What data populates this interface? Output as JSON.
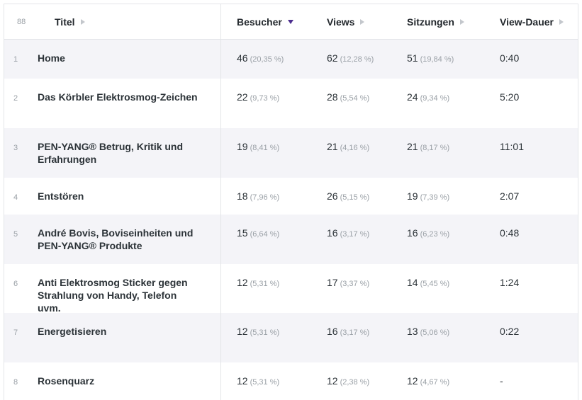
{
  "header": {
    "count": "88",
    "columns": [
      {
        "label": "Titel"
      },
      {
        "label": "Besucher"
      },
      {
        "label": "Views"
      },
      {
        "label": "Sitzungen"
      },
      {
        "label": "View-Dauer"
      }
    ]
  },
  "rows": [
    {
      "num": "1",
      "title": "Home",
      "visitors": "46",
      "visitors_pct": "(20,35 %)",
      "views": "62",
      "views_pct": "(12,28 %)",
      "sessions": "51",
      "sessions_pct": "(19,84 %)",
      "duration": "0:40"
    },
    {
      "num": "2",
      "title": "Das Körbler Elektrosmog-Zeichen",
      "visitors": "22",
      "visitors_pct": "(9,73 %)",
      "views": "28",
      "views_pct": "(5,54 %)",
      "sessions": "24",
      "sessions_pct": "(9,34 %)",
      "duration": "5:20"
    },
    {
      "num": "3",
      "title": "PEN-YANG® Betrug, Kritik und Erfahrungen",
      "visitors": "19",
      "visitors_pct": "(8,41 %)",
      "views": "21",
      "views_pct": "(4,16 %)",
      "sessions": "21",
      "sessions_pct": "(8,17 %)",
      "duration": "11:01"
    },
    {
      "num": "4",
      "title": "Entstören",
      "visitors": "18",
      "visitors_pct": "(7,96 %)",
      "views": "26",
      "views_pct": "(5,15 %)",
      "sessions": "19",
      "sessions_pct": "(7,39 %)",
      "duration": "2:07"
    },
    {
      "num": "5",
      "title": "André Bovis, Boviseinheiten und PEN-YANG® Produkte",
      "visitors": "15",
      "visitors_pct": "(6,64 %)",
      "views": "16",
      "views_pct": "(3,17 %)",
      "sessions": "16",
      "sessions_pct": "(6,23 %)",
      "duration": "0:48"
    },
    {
      "num": "6",
      "title": "Anti Elektrosmog Sticker gegen Strahlung von Handy, Telefon uvm.",
      "visitors": "12",
      "visitors_pct": "(5,31 %)",
      "views": "17",
      "views_pct": "(3,37 %)",
      "sessions": "14",
      "sessions_pct": "(5,45 %)",
      "duration": "1:24"
    },
    {
      "num": "7",
      "title": "Energetisieren",
      "visitors": "12",
      "visitors_pct": "(5,31 %)",
      "views": "16",
      "views_pct": "(3,17 %)",
      "sessions": "13",
      "sessions_pct": "(5,06 %)",
      "duration": "0:22"
    },
    {
      "num": "8",
      "title": "Rosenquarz",
      "visitors": "12",
      "visitors_pct": "(5,31 %)",
      "views": "12",
      "views_pct": "(2,38 %)",
      "sessions": "12",
      "sessions_pct": "(4,67 %)",
      "duration": "-"
    }
  ]
}
